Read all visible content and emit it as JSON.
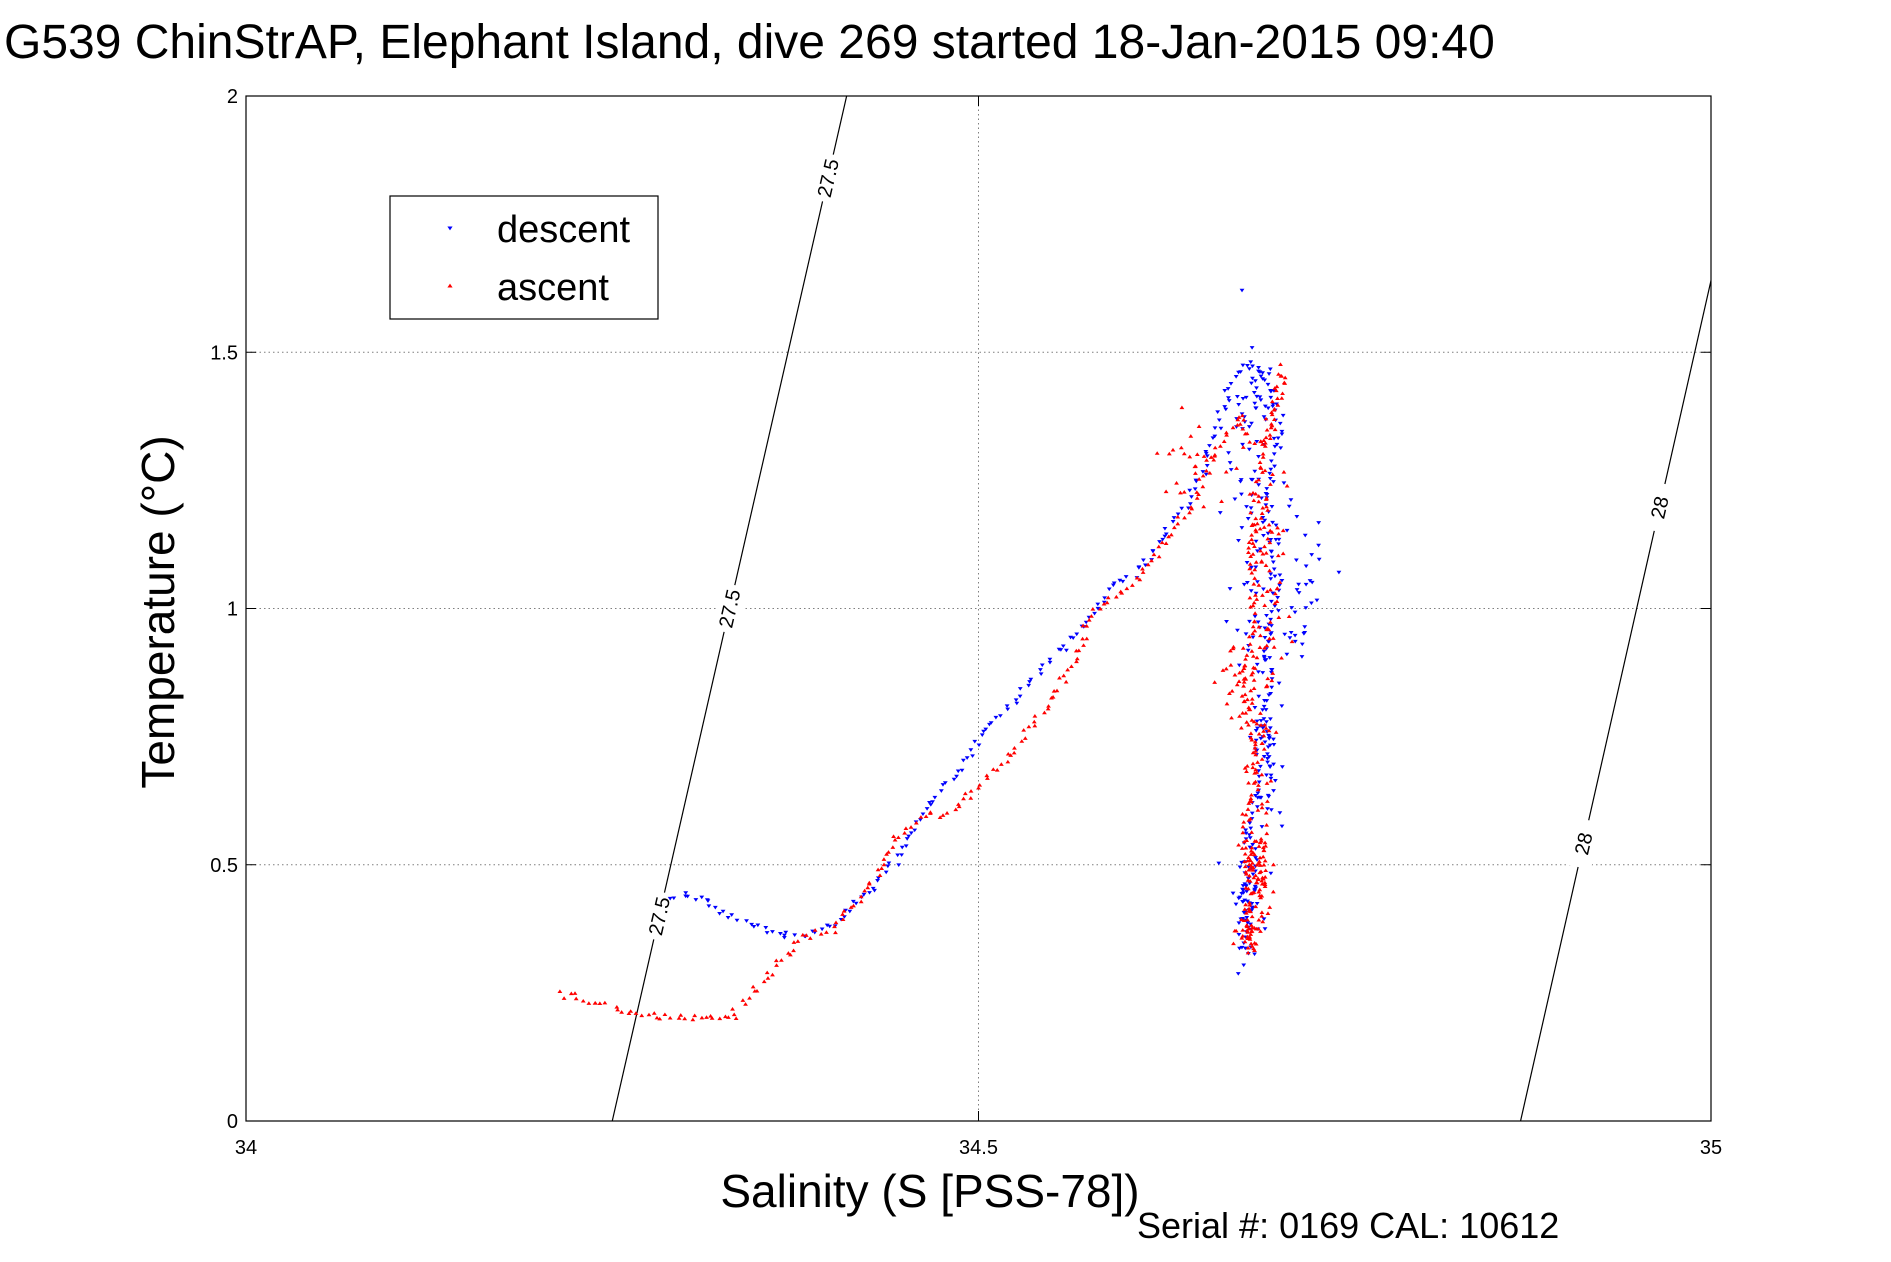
{
  "figure": {
    "title": "G539 ChinStrAP, Elephant Island, dive 269 started 18-Jan-2015 09:40",
    "serial": "Serial #: 0169 CAL: 10612"
  },
  "chart_data": {
    "type": "scatter",
    "xlabel": "Salinity (S [PSS-78])",
    "ylabel": "Temperature (°C)",
    "xlim": [
      34,
      35
    ],
    "ylim": [
      0,
      2
    ],
    "x_ticks": [
      34,
      34.5,
      35
    ],
    "x_tick_labels": [
      "34",
      "34.5",
      "35"
    ],
    "y_ticks": [
      0,
      0.5,
      1,
      1.5,
      2
    ],
    "y_tick_labels": [
      "0",
      "0.5",
      "1",
      "1.5",
      "2"
    ],
    "grid": true,
    "legend_position": "top-left",
    "series": [
      {
        "name": "descent",
        "color": "#0000ff",
        "marker": "triangle-down",
        "path": [
          [
            34.29,
            0.43
          ],
          [
            34.3,
            0.44
          ],
          [
            34.315,
            0.43
          ],
          [
            34.33,
            0.4
          ],
          [
            34.35,
            0.38
          ],
          [
            34.37,
            0.36
          ],
          [
            34.38,
            0.36
          ],
          [
            34.4,
            0.38
          ],
          [
            34.43,
            0.46
          ],
          [
            34.45,
            0.54
          ],
          [
            34.47,
            0.63
          ],
          [
            34.49,
            0.7
          ],
          [
            34.51,
            0.78
          ],
          [
            34.53,
            0.84
          ],
          [
            34.55,
            0.9
          ],
          [
            34.57,
            0.96
          ],
          [
            34.59,
            1.04
          ],
          [
            34.61,
            1.08
          ],
          [
            34.62,
            1.12
          ],
          [
            34.64,
            1.19
          ],
          [
            34.655,
            1.27
          ],
          [
            34.66,
            1.33
          ],
          [
            34.665,
            1.38
          ],
          [
            34.675,
            1.45
          ],
          [
            34.685,
            1.48
          ],
          [
            34.69,
            1.47
          ],
          [
            34.7,
            1.42
          ],
          [
            34.705,
            1.36
          ],
          [
            34.7,
            1.28
          ],
          [
            34.695,
            1.2
          ],
          [
            34.7,
            1.12
          ],
          [
            34.705,
            1.05
          ],
          [
            34.7,
            0.98
          ],
          [
            34.695,
            0.92
          ],
          [
            34.7,
            0.86
          ],
          [
            34.695,
            0.8
          ],
          [
            34.7,
            0.74
          ],
          [
            34.695,
            0.68
          ],
          [
            34.69,
            0.62
          ],
          [
            34.685,
            0.56
          ],
          [
            34.69,
            0.5
          ],
          [
            34.68,
            0.44
          ],
          [
            34.685,
            0.38
          ],
          [
            34.68,
            0.33
          ]
        ],
        "clusters": [
          {
            "x": 34.688,
            "y": 1.4,
            "sx": 0.009,
            "sy": 0.06,
            "n": 40
          },
          {
            "x": 34.69,
            "y": 1.1,
            "sx": 0.012,
            "sy": 0.15,
            "n": 70
          },
          {
            "x": 34.72,
            "y": 1.05,
            "sx": 0.01,
            "sy": 0.09,
            "n": 35
          },
          {
            "x": 34.695,
            "y": 0.72,
            "sx": 0.006,
            "sy": 0.12,
            "n": 55
          },
          {
            "x": 34.685,
            "y": 0.43,
            "sx": 0.006,
            "sy": 0.07,
            "n": 55
          }
        ]
      },
      {
        "name": "ascent",
        "color": "#ff0000",
        "marker": "triangle-up",
        "path": [
          [
            34.215,
            0.25
          ],
          [
            34.23,
            0.235
          ],
          [
            34.25,
            0.22
          ],
          [
            34.27,
            0.205
          ],
          [
            34.28,
            0.2
          ],
          [
            34.29,
            0.205
          ],
          [
            34.31,
            0.205
          ],
          [
            34.33,
            0.205
          ],
          [
            34.335,
            0.21
          ],
          [
            34.345,
            0.25
          ],
          [
            34.36,
            0.29
          ],
          [
            34.37,
            0.33
          ],
          [
            34.38,
            0.36
          ],
          [
            34.4,
            0.37
          ],
          [
            34.42,
            0.44
          ],
          [
            34.435,
            0.5
          ],
          [
            34.445,
            0.56
          ],
          [
            34.46,
            0.59
          ],
          [
            34.48,
            0.6
          ],
          [
            34.5,
            0.65
          ],
          [
            34.52,
            0.71
          ],
          [
            34.54,
            0.78
          ],
          [
            34.56,
            0.87
          ],
          [
            34.57,
            0.92
          ],
          [
            34.575,
            0.98
          ],
          [
            34.59,
            1.02
          ],
          [
            34.61,
            1.06
          ],
          [
            34.63,
            1.14
          ],
          [
            34.65,
            1.22
          ],
          [
            34.655,
            1.28
          ],
          [
            34.67,
            1.33
          ],
          [
            34.675,
            1.36
          ],
          [
            34.68,
            1.38
          ],
          [
            34.685,
            1.32
          ],
          [
            34.7,
            1.33
          ],
          [
            34.705,
            1.4
          ],
          [
            34.71,
            1.44
          ],
          [
            34.705,
            1.47
          ],
          [
            34.7,
            1.38
          ],
          [
            34.69,
            1.24
          ],
          [
            34.685,
            1.12
          ],
          [
            34.69,
            1.02
          ],
          [
            34.685,
            0.94
          ],
          [
            34.68,
            0.86
          ],
          [
            34.685,
            0.78
          ],
          [
            34.69,
            0.7
          ],
          [
            34.685,
            0.62
          ],
          [
            34.68,
            0.54
          ],
          [
            34.685,
            0.46
          ],
          [
            34.68,
            0.38
          ],
          [
            34.675,
            0.36
          ]
        ],
        "clusters": [
          {
            "x": 34.695,
            "y": 1.15,
            "sx": 0.007,
            "sy": 0.08,
            "n": 45
          },
          {
            "x": 34.7,
            "y": 0.98,
            "sx": 0.006,
            "sy": 0.06,
            "n": 30
          },
          {
            "x": 34.68,
            "y": 0.86,
            "sx": 0.008,
            "sy": 0.04,
            "n": 35
          },
          {
            "x": 34.69,
            "y": 0.7,
            "sx": 0.006,
            "sy": 0.08,
            "n": 45
          },
          {
            "x": 34.69,
            "y": 0.48,
            "sx": 0.005,
            "sy": 0.05,
            "n": 80
          },
          {
            "x": 34.685,
            "y": 0.38,
            "sx": 0.004,
            "sy": 0.03,
            "n": 35
          },
          {
            "x": 34.645,
            "y": 1.29,
            "sx": 0.012,
            "sy": 0.04,
            "n": 25
          }
        ]
      }
    ],
    "contours": [
      {
        "label": "27.5",
        "from": [
          34.25,
          0
        ],
        "to": [
          34.41,
          2
        ],
        "label_positions": [
          0.2,
          0.5,
          0.92
        ]
      },
      {
        "label": "28",
        "from": [
          34.87,
          0
        ],
        "to": [
          35,
          1.64
        ],
        "label_positions": [
          0.33,
          0.73
        ]
      }
    ]
  }
}
